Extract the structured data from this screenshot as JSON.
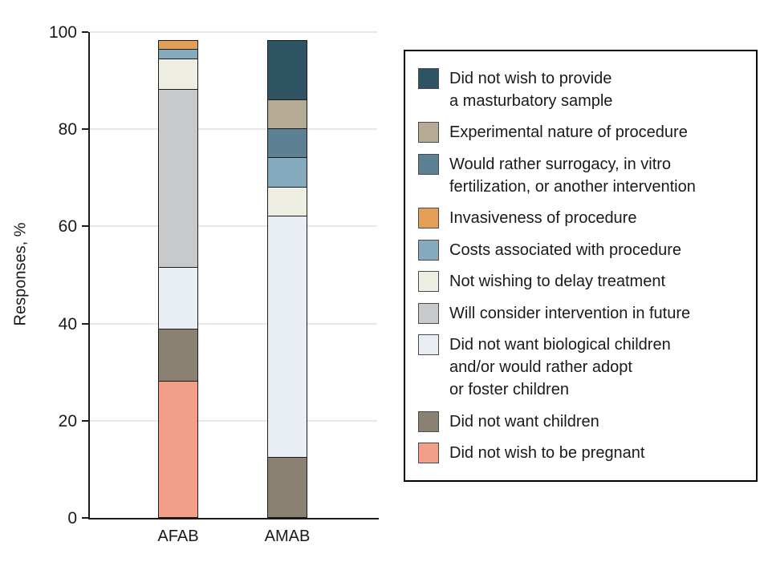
{
  "chart_data": {
    "type": "bar",
    "subtype": "stacked",
    "title": "",
    "xlabel": "",
    "ylabel": "Responses, %",
    "categories": [
      "AFAB",
      "AMAB"
    ],
    "ylim": [
      0,
      100
    ],
    "yticks": [
      0,
      20,
      40,
      60,
      80,
      100
    ],
    "grid": "horizontal",
    "legend_position": "right",
    "stack_order": "legend order, top of bar to bottom of bar",
    "series": [
      {
        "name": "Did not wish to provide\na masturbatory sample",
        "color": "#2e5363",
        "values": [
          0,
          12.5
        ]
      },
      {
        "name": "Experimental nature of procedure",
        "color": "#b5aa94",
        "values": [
          0,
          6.25
        ]
      },
      {
        "name": "Would rather surrogacy, in vitro\nfertilization, or another intervention",
        "color": "#5d8193",
        "values": [
          0,
          6.25
        ]
      },
      {
        "name": "Invasiveness of procedure",
        "color": "#e2a057",
        "values": [
          2.2,
          0
        ]
      },
      {
        "name": "Costs associated with procedure",
        "color": "#85a9bd",
        "values": [
          2.2,
          6.25
        ]
      },
      {
        "name": "Not wishing to delay treatment",
        "color": "#efeee2",
        "values": [
          6.5,
          6.25
        ]
      },
      {
        "name": "Will consider intervention in future",
        "color": "#c7c9cb",
        "values": [
          37,
          0
        ]
      },
      {
        "name": "Did not want biological children\nand/or would rather adopt\nor foster children",
        "color": "#e8eef3",
        "values": [
          13,
          50
        ]
      },
      {
        "name": "Did not want children",
        "color": "#8a8172",
        "values": [
          10.9,
          12.5
        ]
      },
      {
        "name": "Did not wish to be pregnant",
        "color": "#f39e89",
        "values": [
          28.3,
          0
        ]
      }
    ],
    "colors": {
      "axis": "#1b1b1b",
      "gridline": "#e8e8e8",
      "segment_border": "#1b1b1b",
      "legend_border": "#000000",
      "text": "#1a1a1a"
    }
  }
}
